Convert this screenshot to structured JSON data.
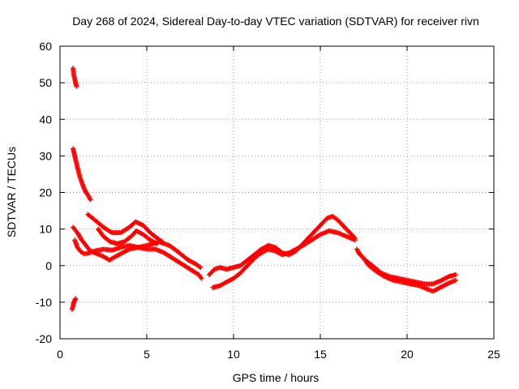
{
  "chart_data": {
    "type": "scatter",
    "title": "Day 268 of 2024, Sidereal Day-to-day VTEC variation (SDTVAR) for receiver rivn",
    "xlabel": "GPS time / hours",
    "ylabel": "SDTVAR / TECUs",
    "xlim": [
      0,
      25
    ],
    "ylim": [
      -20,
      60
    ],
    "xticks": [
      0,
      5,
      10,
      15,
      20,
      25
    ],
    "yticks": [
      -20,
      -10,
      0,
      10,
      20,
      30,
      40,
      50,
      60
    ],
    "grid": true,
    "marker": "+",
    "color": "#ff0000",
    "series": [
      {
        "name": "segment-1",
        "points": [
          [
            0.75,
            54
          ],
          [
            0.8,
            52
          ],
          [
            0.85,
            51
          ],
          [
            0.9,
            50
          ],
          [
            0.95,
            49
          ]
        ]
      },
      {
        "name": "segment-2",
        "points": [
          [
            0.7,
            -12
          ],
          [
            0.75,
            -11
          ],
          [
            0.8,
            -10
          ],
          [
            0.85,
            -9.5
          ],
          [
            0.9,
            -9
          ]
        ]
      },
      {
        "name": "segment-3",
        "points": [
          [
            0.75,
            32
          ],
          [
            0.9,
            29
          ],
          [
            1.0,
            27
          ],
          [
            1.1,
            25
          ],
          [
            1.2,
            23.5
          ],
          [
            1.35,
            21.5
          ],
          [
            1.5,
            20
          ],
          [
            1.65,
            19
          ],
          [
            1.75,
            18
          ]
        ]
      },
      {
        "name": "segment-4",
        "points": [
          [
            0.75,
            10.5
          ],
          [
            1.0,
            9
          ],
          [
            1.25,
            7
          ],
          [
            1.5,
            5.5
          ],
          [
            1.75,
            4
          ],
          [
            2.0,
            3.5
          ],
          [
            2.5,
            2.5
          ],
          [
            2.85,
            1.5
          ],
          [
            3.2,
            2.5
          ],
          [
            3.6,
            3.5
          ],
          [
            4.0,
            4.5
          ],
          [
            4.5,
            5
          ],
          [
            5.0,
            5.5
          ],
          [
            5.4,
            6
          ],
          [
            5.7,
            6.5
          ],
          [
            6.0,
            6
          ],
          [
            6.3,
            5.5
          ],
          [
            6.6,
            4.5
          ],
          [
            7.0,
            3
          ],
          [
            7.4,
            1.5
          ],
          [
            7.8,
            0.5
          ],
          [
            8.1,
            -0.5
          ]
        ]
      },
      {
        "name": "segment-5",
        "points": [
          [
            0.85,
            7
          ],
          [
            1.0,
            5
          ],
          [
            1.2,
            3.8
          ],
          [
            1.4,
            3.2
          ],
          [
            1.7,
            3.5
          ],
          [
            2.0,
            4
          ],
          [
            2.5,
            4.5
          ],
          [
            3.0,
            4.2
          ],
          [
            3.5,
            5
          ],
          [
            4.0,
            5.5
          ],
          [
            4.5,
            5
          ],
          [
            5.0,
            4.5
          ],
          [
            5.5,
            4.5
          ],
          [
            6.0,
            3.5
          ],
          [
            6.5,
            2
          ],
          [
            7.0,
            0.5
          ],
          [
            7.5,
            -1
          ],
          [
            8.0,
            -2.5
          ],
          [
            8.15,
            -3.5
          ]
        ]
      },
      {
        "name": "segment-6",
        "points": [
          [
            1.6,
            14
          ],
          [
            2.0,
            12.5
          ],
          [
            2.5,
            10.5
          ],
          [
            3.0,
            9
          ],
          [
            3.5,
            9
          ],
          [
            4.0,
            10.5
          ],
          [
            4.35,
            12
          ],
          [
            4.8,
            11
          ],
          [
            5.2,
            9
          ],
          [
            5.6,
            7.5
          ],
          [
            5.9,
            6.5
          ]
        ]
      },
      {
        "name": "segment-7",
        "points": [
          [
            2.2,
            10
          ],
          [
            2.5,
            8
          ],
          [
            2.9,
            6.5
          ],
          [
            3.3,
            6
          ],
          [
            3.7,
            6.5
          ],
          [
            4.1,
            8
          ],
          [
            4.4,
            9.5
          ],
          [
            4.8,
            8.5
          ],
          [
            5.2,
            7
          ],
          [
            5.6,
            6
          ]
        ]
      },
      {
        "name": "segment-8",
        "points": [
          [
            8.6,
            -2.5
          ],
          [
            8.9,
            -1
          ],
          [
            9.2,
            -0.5
          ],
          [
            9.6,
            -1
          ],
          [
            10.0,
            -0.5
          ],
          [
            10.4,
            0
          ],
          [
            10.8,
            1.5
          ],
          [
            11.2,
            3
          ],
          [
            11.6,
            4.5
          ],
          [
            12.0,
            5.5
          ],
          [
            12.4,
            5
          ],
          [
            12.8,
            3.5
          ],
          [
            13.2,
            3
          ],
          [
            13.6,
            4
          ],
          [
            14.0,
            6
          ],
          [
            14.5,
            8.5
          ],
          [
            15.0,
            11
          ],
          [
            15.4,
            13
          ],
          [
            15.7,
            13.5
          ],
          [
            16.0,
            12.5
          ],
          [
            16.4,
            10.5
          ],
          [
            16.7,
            9
          ],
          [
            17.0,
            7.5
          ]
        ]
      },
      {
        "name": "segment-9",
        "points": [
          [
            8.8,
            -6
          ],
          [
            9.2,
            -5.5
          ],
          [
            9.6,
            -4.5
          ],
          [
            10.0,
            -3.5
          ],
          [
            10.4,
            -2
          ],
          [
            10.8,
            0
          ],
          [
            11.2,
            2
          ],
          [
            11.6,
            3.5
          ],
          [
            12.0,
            4.5
          ],
          [
            12.4,
            4
          ],
          [
            12.8,
            3
          ],
          [
            13.2,
            3.5
          ],
          [
            13.6,
            4.5
          ],
          [
            14.0,
            5.5
          ],
          [
            14.5,
            7
          ],
          [
            15.0,
            8.5
          ],
          [
            15.5,
            9.5
          ],
          [
            16.0,
            9
          ],
          [
            16.5,
            8
          ],
          [
            17.0,
            7
          ]
        ]
      },
      {
        "name": "segment-10",
        "points": [
          [
            17.1,
            4.5
          ],
          [
            17.3,
            3
          ],
          [
            17.6,
            1.5
          ],
          [
            18.0,
            0
          ],
          [
            18.5,
            -2
          ],
          [
            19.0,
            -3
          ],
          [
            19.5,
            -3.5
          ],
          [
            20.0,
            -4
          ],
          [
            20.5,
            -4.5
          ],
          [
            21.0,
            -5
          ],
          [
            21.5,
            -5
          ],
          [
            22.0,
            -4
          ],
          [
            22.4,
            -3
          ],
          [
            22.8,
            -2.5
          ]
        ]
      },
      {
        "name": "segment-11",
        "points": [
          [
            17.2,
            3.5
          ],
          [
            17.5,
            2
          ],
          [
            17.8,
            0
          ],
          [
            18.2,
            -1.5
          ],
          [
            18.7,
            -3
          ],
          [
            19.2,
            -4
          ],
          [
            19.7,
            -4.5
          ],
          [
            20.2,
            -5
          ],
          [
            20.7,
            -5.5
          ],
          [
            21.2,
            -6.5
          ],
          [
            21.5,
            -7
          ],
          [
            21.9,
            -6
          ],
          [
            22.3,
            -5
          ],
          [
            22.8,
            -4
          ]
        ]
      }
    ]
  }
}
